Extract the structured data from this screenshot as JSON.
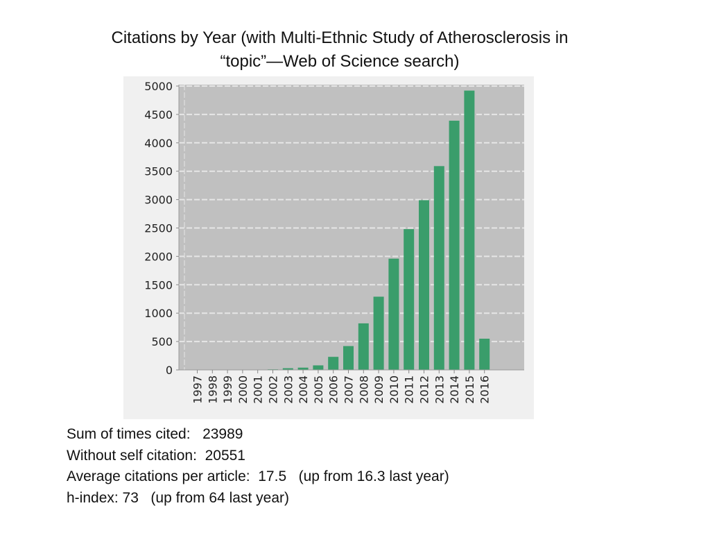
{
  "slide": {
    "title_line1": "Citations by Year (with Multi-Ethnic Study of Atherosclerosis in",
    "title_line2": "“topic”—Web of Science search)"
  },
  "stats": {
    "sum_cited": "Sum of times cited:   23989",
    "without_self": "Without self citation:  20551",
    "avg_citations": "Average citations per article:  17.5   (up from 16.3 last year)",
    "h_index": "h-index: 73   (up from 64 last year)"
  },
  "colors": {
    "bar": "#3a9d6b",
    "plot_background": "#c0c0c0",
    "panel_background": "#f0f0f0",
    "gridline": "#e6e6e6"
  },
  "chart_data": {
    "type": "bar",
    "title": "",
    "xlabel": "",
    "ylabel": "",
    "categories": [
      "1997",
      "1998",
      "1999",
      "2000",
      "2001",
      "2002",
      "2003",
      "2004",
      "2005",
      "2006",
      "2007",
      "2008",
      "2009",
      "2010",
      "2011",
      "2012",
      "2013",
      "2014",
      "2015",
      "2016"
    ],
    "values": [
      0,
      0,
      0,
      0,
      0,
      10,
      30,
      40,
      80,
      230,
      420,
      820,
      1290,
      1960,
      2480,
      2990,
      3590,
      4390,
      4920,
      550
    ],
    "ylim": [
      0,
      5000
    ],
    "yticks": [
      0,
      500,
      1000,
      1500,
      2000,
      2500,
      3000,
      3500,
      4000,
      4500,
      5000
    ],
    "ytick_labels": [
      "0",
      "500",
      "1000",
      "1500",
      "2000",
      "2500",
      "3000",
      "3500",
      "4000",
      "4500",
      "5000"
    ],
    "grid": true,
    "legend": "none"
  }
}
